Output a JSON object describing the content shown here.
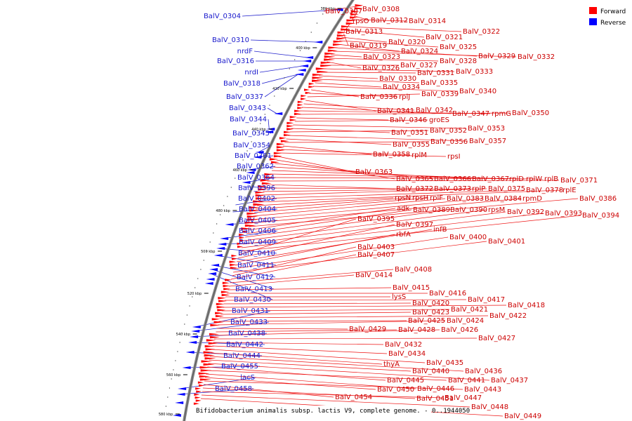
{
  "caption": "Bifidobacterium animalis subsp. lactis V9, complete genome. - 0..1944050",
  "legend": [
    {
      "label": "Forward",
      "color": "#ff0000"
    },
    {
      "label": "Reverse",
      "color": "#0000ff"
    }
  ],
  "ticks": [
    "380 kbp",
    "400 kbp",
    "420 kbp",
    "440 kbp",
    "460 kbp",
    "480 kbp",
    "500 kbp",
    "520 kbp",
    "540 kbp",
    "560 kbp",
    "580 kbp"
  ],
  "reverse_genes": [
    "BalV_0304",
    "BalV_0310",
    "nrdF",
    "BalV_0316",
    "nrdI",
    "BalV_0318",
    "BalV_0337",
    "BalV_0343",
    "BalV_0344",
    "BalV_0345",
    "BalV_0354",
    "BalV_0361",
    "BalV_0362",
    "BalV_0364",
    "BalV_0396",
    "BalV_0402",
    "BalV_0404",
    "BalV_0405",
    "BalV_0406",
    "BalV_0409",
    "BalV_0410",
    "BalV_0411",
    "BalV_0412",
    "BalV_0413",
    "BalV_0430",
    "BalV_0431",
    "BalV_0433",
    "BalV_0438",
    "BalV_0442",
    "BalV_0444",
    "BalV_0455",
    "lacS",
    "BalV_0458"
  ],
  "forward_genes": [
    "BalV_0307",
    "BalV_0308",
    "rpsO",
    "BalV_0312",
    "BalV_0314",
    "BalV_0313",
    "BalV_0322",
    "BalV_0321",
    "BalV_0319",
    "BalV_0320",
    "BalV_0325",
    "BalV_0324",
    "BalV_0329",
    "BalV_0332",
    "BalV_0323",
    "BalV_0328",
    "BalV_0326",
    "BalV_0327",
    "BalV_0333",
    "BalV_0331",
    "BalV_0330",
    "BalV_0335",
    "BalV_0334",
    "BalV_0340",
    "BalV_0336",
    "rplJ",
    "BalV_0339",
    "BalV_0341",
    "BalV_0342",
    "BalV_0347",
    "rpmG",
    "BalV_0350",
    "BalV_0346",
    "groES",
    "BalV_0353",
    "BalV_0351",
    "BalV_0352",
    "BalV_0357",
    "BalV_0355",
    "BalV_0356",
    "BalV_0358",
    "rplM",
    "rpsI",
    "BalV_0363",
    "BalV_0365",
    "BalV_0366",
    "BalV_0367",
    "rplD",
    "rplW",
    "rplB",
    "BalV_0371",
    "BalV_0372",
    "BalV_0373",
    "rplP",
    "BalV_0375",
    "BalV_0378",
    "rplE",
    "rpsN",
    "rpsH",
    "rplF",
    "BalV_0383",
    "BalV_0384",
    "rpmD",
    "BalV_0386",
    "adk",
    "BalV_0389",
    "BalV_0390",
    "rpsM",
    "BalV_0392",
    "BalV_0393",
    "BalV_0394",
    "BalV_0395",
    "BalV_0397",
    "infB",
    "rbfA",
    "BalV_0400",
    "BalV_0401",
    "BalV_0403",
    "BalV_0407",
    "BalV_0408",
    "BalV_0414",
    "BalV_0415",
    "BalV_0416",
    "lysS",
    "BalV_0417",
    "BalV_0420",
    "BalV_0418",
    "BalV_0421",
    "BalV_0423",
    "BalV_0422",
    "BalV_0425",
    "BalV_0424",
    "BalV_0429",
    "BalV_0428",
    "BalV_0426",
    "BalV_0427",
    "BalV_0432",
    "BalV_0434",
    "BalV_0435",
    "thyA",
    "BalV_0436",
    "BalV_0440",
    "BalV_0437",
    "BalV_0445",
    "BalV_0441",
    "BalV_0446",
    "BalV_0450",
    "BalV_0443",
    "BalV_0454",
    "BalV_0451",
    "BalV_0447",
    "BalV_0448",
    "BalV_0449"
  ]
}
